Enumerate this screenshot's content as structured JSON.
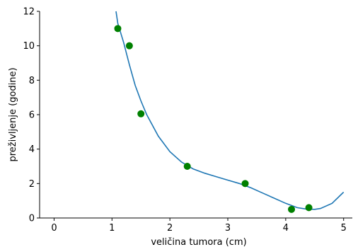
{
  "chart_data": {
    "type": "scatter",
    "xlabel": "veličina tumora (cm)",
    "ylabel": "preživljenje (godine)",
    "xlim": [
      -0.25,
      5.15
    ],
    "ylim": [
      0,
      12
    ],
    "x_ticks": [
      0,
      1,
      2,
      3,
      4,
      5
    ],
    "y_ticks": [
      0,
      2,
      4,
      6,
      8,
      10,
      12
    ],
    "grid": false,
    "legend": "none",
    "series": [
      {
        "kind": "points",
        "color": "#008000",
        "x": [
          1.1,
          1.3,
          1.5,
          2.3,
          3.3,
          4.1,
          4.4
        ],
        "y": [
          11.0,
          10.0,
          6.05,
          3.0,
          2.0,
          0.5,
          0.6
        ]
      },
      {
        "kind": "fit-line",
        "color": "#1f77b4",
        "x": [
          1.07,
          1.1,
          1.2,
          1.3,
          1.4,
          1.5,
          1.6,
          1.8,
          2.0,
          2.2,
          2.4,
          2.6,
          2.8,
          3.0,
          3.2,
          3.4,
          3.6,
          3.8,
          4.0,
          4.2,
          4.35,
          4.5,
          4.6,
          4.8,
          5.0
        ],
        "y": [
          12.0,
          11.3,
          10.2,
          8.9,
          7.7,
          6.8,
          6.0,
          4.75,
          3.85,
          3.25,
          2.85,
          2.6,
          2.4,
          2.2,
          2.0,
          1.75,
          1.45,
          1.15,
          0.85,
          0.6,
          0.52,
          0.5,
          0.55,
          0.85,
          1.5
        ]
      }
    ]
  }
}
